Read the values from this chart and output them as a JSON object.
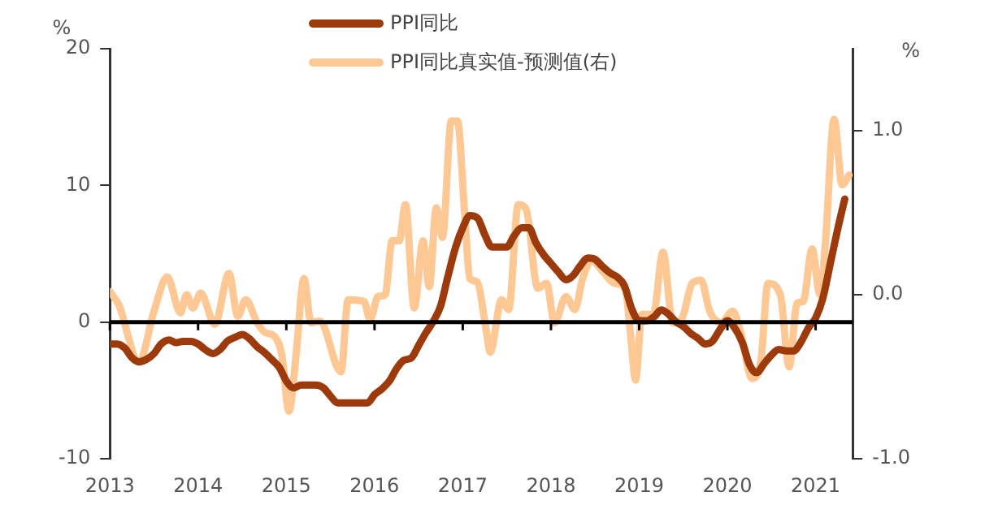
{
  "chart_data": {
    "type": "line",
    "ylabel": "%",
    "y2label": "%",
    "series": [
      {
        "name": "PPI同比",
        "color": "#9c3a0c",
        "axis": "y",
        "x": [
          2013.0,
          2013.08,
          2013.17,
          2013.25,
          2013.33,
          2013.42,
          2013.5,
          2013.58,
          2013.67,
          2013.75,
          2013.83,
          2013.92,
          2014.0,
          2014.08,
          2014.17,
          2014.25,
          2014.33,
          2014.42,
          2014.5,
          2014.58,
          2014.67,
          2014.75,
          2014.83,
          2014.92,
          2015.0,
          2015.08,
          2015.17,
          2015.25,
          2015.33,
          2015.42,
          2015.5,
          2015.58,
          2015.67,
          2015.75,
          2015.83,
          2015.92,
          2016.0,
          2016.08,
          2016.17,
          2016.25,
          2016.33,
          2016.42,
          2016.5,
          2016.58,
          2016.67,
          2016.75,
          2016.83,
          2016.92,
          2017.0,
          2017.08,
          2017.17,
          2017.25,
          2017.33,
          2017.42,
          2017.5,
          2017.58,
          2017.67,
          2017.75,
          2017.83,
          2017.92,
          2018.0,
          2018.08,
          2018.17,
          2018.25,
          2018.33,
          2018.42,
          2018.5,
          2018.58,
          2018.67,
          2018.75,
          2018.83,
          2018.92,
          2019.0,
          2019.08,
          2019.17,
          2019.25,
          2019.33,
          2019.42,
          2019.5,
          2019.58,
          2019.67,
          2019.75,
          2019.83,
          2019.92,
          2020.0,
          2020.08,
          2020.17,
          2020.25,
          2020.33,
          2020.42,
          2020.5,
          2020.58,
          2020.67,
          2020.75,
          2020.83,
          2020.92,
          2021.0,
          2021.08,
          2021.17,
          2021.25,
          2021.33
        ],
        "values": [
          -1.6,
          -1.6,
          -1.9,
          -2.6,
          -2.9,
          -2.7,
          -2.3,
          -1.6,
          -1.3,
          -1.5,
          -1.4,
          -1.4,
          -1.6,
          -2.0,
          -2.3,
          -2.0,
          -1.4,
          -1.1,
          -0.9,
          -1.2,
          -1.8,
          -2.2,
          -2.7,
          -3.3,
          -4.3,
          -4.8,
          -4.6,
          -4.6,
          -4.6,
          -4.8,
          -5.4,
          -5.9,
          -5.9,
          -5.9,
          -5.9,
          -5.9,
          -5.3,
          -4.9,
          -4.3,
          -3.4,
          -2.8,
          -2.6,
          -1.7,
          -0.8,
          0.1,
          1.2,
          3.3,
          5.5,
          6.9,
          7.8,
          7.6,
          6.4,
          5.5,
          5.5,
          5.5,
          6.3,
          6.9,
          6.9,
          5.8,
          4.9,
          4.3,
          3.7,
          3.1,
          3.4,
          4.1,
          4.7,
          4.6,
          4.1,
          3.6,
          3.3,
          2.7,
          0.9,
          0.1,
          0.1,
          0.4,
          0.9,
          0.6,
          0.0,
          -0.3,
          -0.8,
          -1.2,
          -1.6,
          -1.4,
          -0.5,
          0.1,
          -0.4,
          -1.5,
          -3.1,
          -3.7,
          -3.0,
          -2.4,
          -2.0,
          -2.1,
          -2.1,
          -1.5,
          -0.4,
          0.3,
          1.7,
          4.4,
          6.8,
          9.0
        ]
      },
      {
        "name": "PPI同比真实值-预测值(右)",
        "color": "#fdc894",
        "axis": "y2",
        "x": [
          2013.0,
          2013.1,
          2013.33,
          2013.5,
          2013.65,
          2013.8,
          2013.87,
          2013.94,
          2014.03,
          2014.19,
          2014.35,
          2014.45,
          2014.54,
          2014.67,
          2014.76,
          2014.86,
          2014.95,
          2015.03,
          2015.11,
          2015.2,
          2015.28,
          2015.38,
          2015.62,
          2015.7,
          2015.88,
          2015.95,
          2016.04,
          2016.12,
          2016.2,
          2016.28,
          2016.35,
          2016.45,
          2016.55,
          2016.62,
          2016.7,
          2016.77,
          2016.87,
          2016.94,
          2017.02,
          2017.08,
          2017.16,
          2017.27,
          2017.31,
          2017.44,
          2017.52,
          2017.63,
          2017.72,
          2017.85,
          2017.95,
          2018.04,
          2018.17,
          2018.27,
          2018.36,
          2018.46,
          2018.59,
          2018.72,
          2018.84,
          2018.9,
          2018.96,
          2019.03,
          2019.16,
          2019.27,
          2019.38,
          2019.48,
          2019.6,
          2019.7,
          2019.8,
          2019.93,
          2020.06,
          2020.15,
          2020.28,
          2020.38,
          2020.46,
          2020.6,
          2020.7,
          2020.79,
          2020.86,
          2020.96,
          2021.05,
          2021.11,
          2021.21,
          2021.3,
          2021.38
        ],
        "values": [
          0.02,
          -0.06,
          -0.41,
          -0.1,
          0.11,
          -0.11,
          0.0,
          -0.08,
          0.01,
          -0.18,
          0.13,
          -0.13,
          -0.03,
          -0.17,
          -0.23,
          -0.25,
          -0.37,
          -0.71,
          -0.37,
          0.1,
          -0.17,
          -0.16,
          -0.47,
          -0.03,
          -0.04,
          -0.15,
          -0.01,
          0.0,
          0.33,
          0.33,
          0.55,
          -0.08,
          0.33,
          0.05,
          0.53,
          0.35,
          1.06,
          1.06,
          0.51,
          0.1,
          0.08,
          -0.23,
          -0.35,
          -0.03,
          -0.09,
          0.55,
          0.52,
          0.04,
          0.07,
          -0.17,
          -0.01,
          -0.09,
          0.1,
          0.21,
          0.14,
          0.07,
          0.04,
          -0.23,
          -0.52,
          -0.12,
          -0.12,
          0.26,
          -0.17,
          -0.15,
          0.07,
          0.09,
          -0.1,
          -0.17,
          -0.1,
          -0.23,
          -0.51,
          -0.4,
          0.07,
          0.0,
          -0.44,
          -0.05,
          -0.04,
          0.28,
          0.0,
          0.31,
          1.07,
          0.67,
          0.73
        ]
      }
    ],
    "xlim": [
      2013,
      2021.42
    ],
    "xticks": [
      2013,
      2014,
      2015,
      2016,
      2017,
      2018,
      2019,
      2020,
      2021
    ],
    "ylim": [
      -10,
      20
    ],
    "yticks": [
      -10,
      0,
      10,
      20
    ],
    "y2lim": [
      -1.0,
      1.5
    ],
    "y2ticks": [
      {
        "value": -1.0,
        "label": "-1.0"
      },
      {
        "value": 0.0,
        "label": "0.0"
      },
      {
        "value": 1.0,
        "label": "1.0"
      }
    ],
    "ref_lines": [
      {
        "axis": "y",
        "value": 0,
        "color": "#000000"
      }
    ],
    "grid": false,
    "legend": "top",
    "marker": "none",
    "line_style": "solid"
  }
}
